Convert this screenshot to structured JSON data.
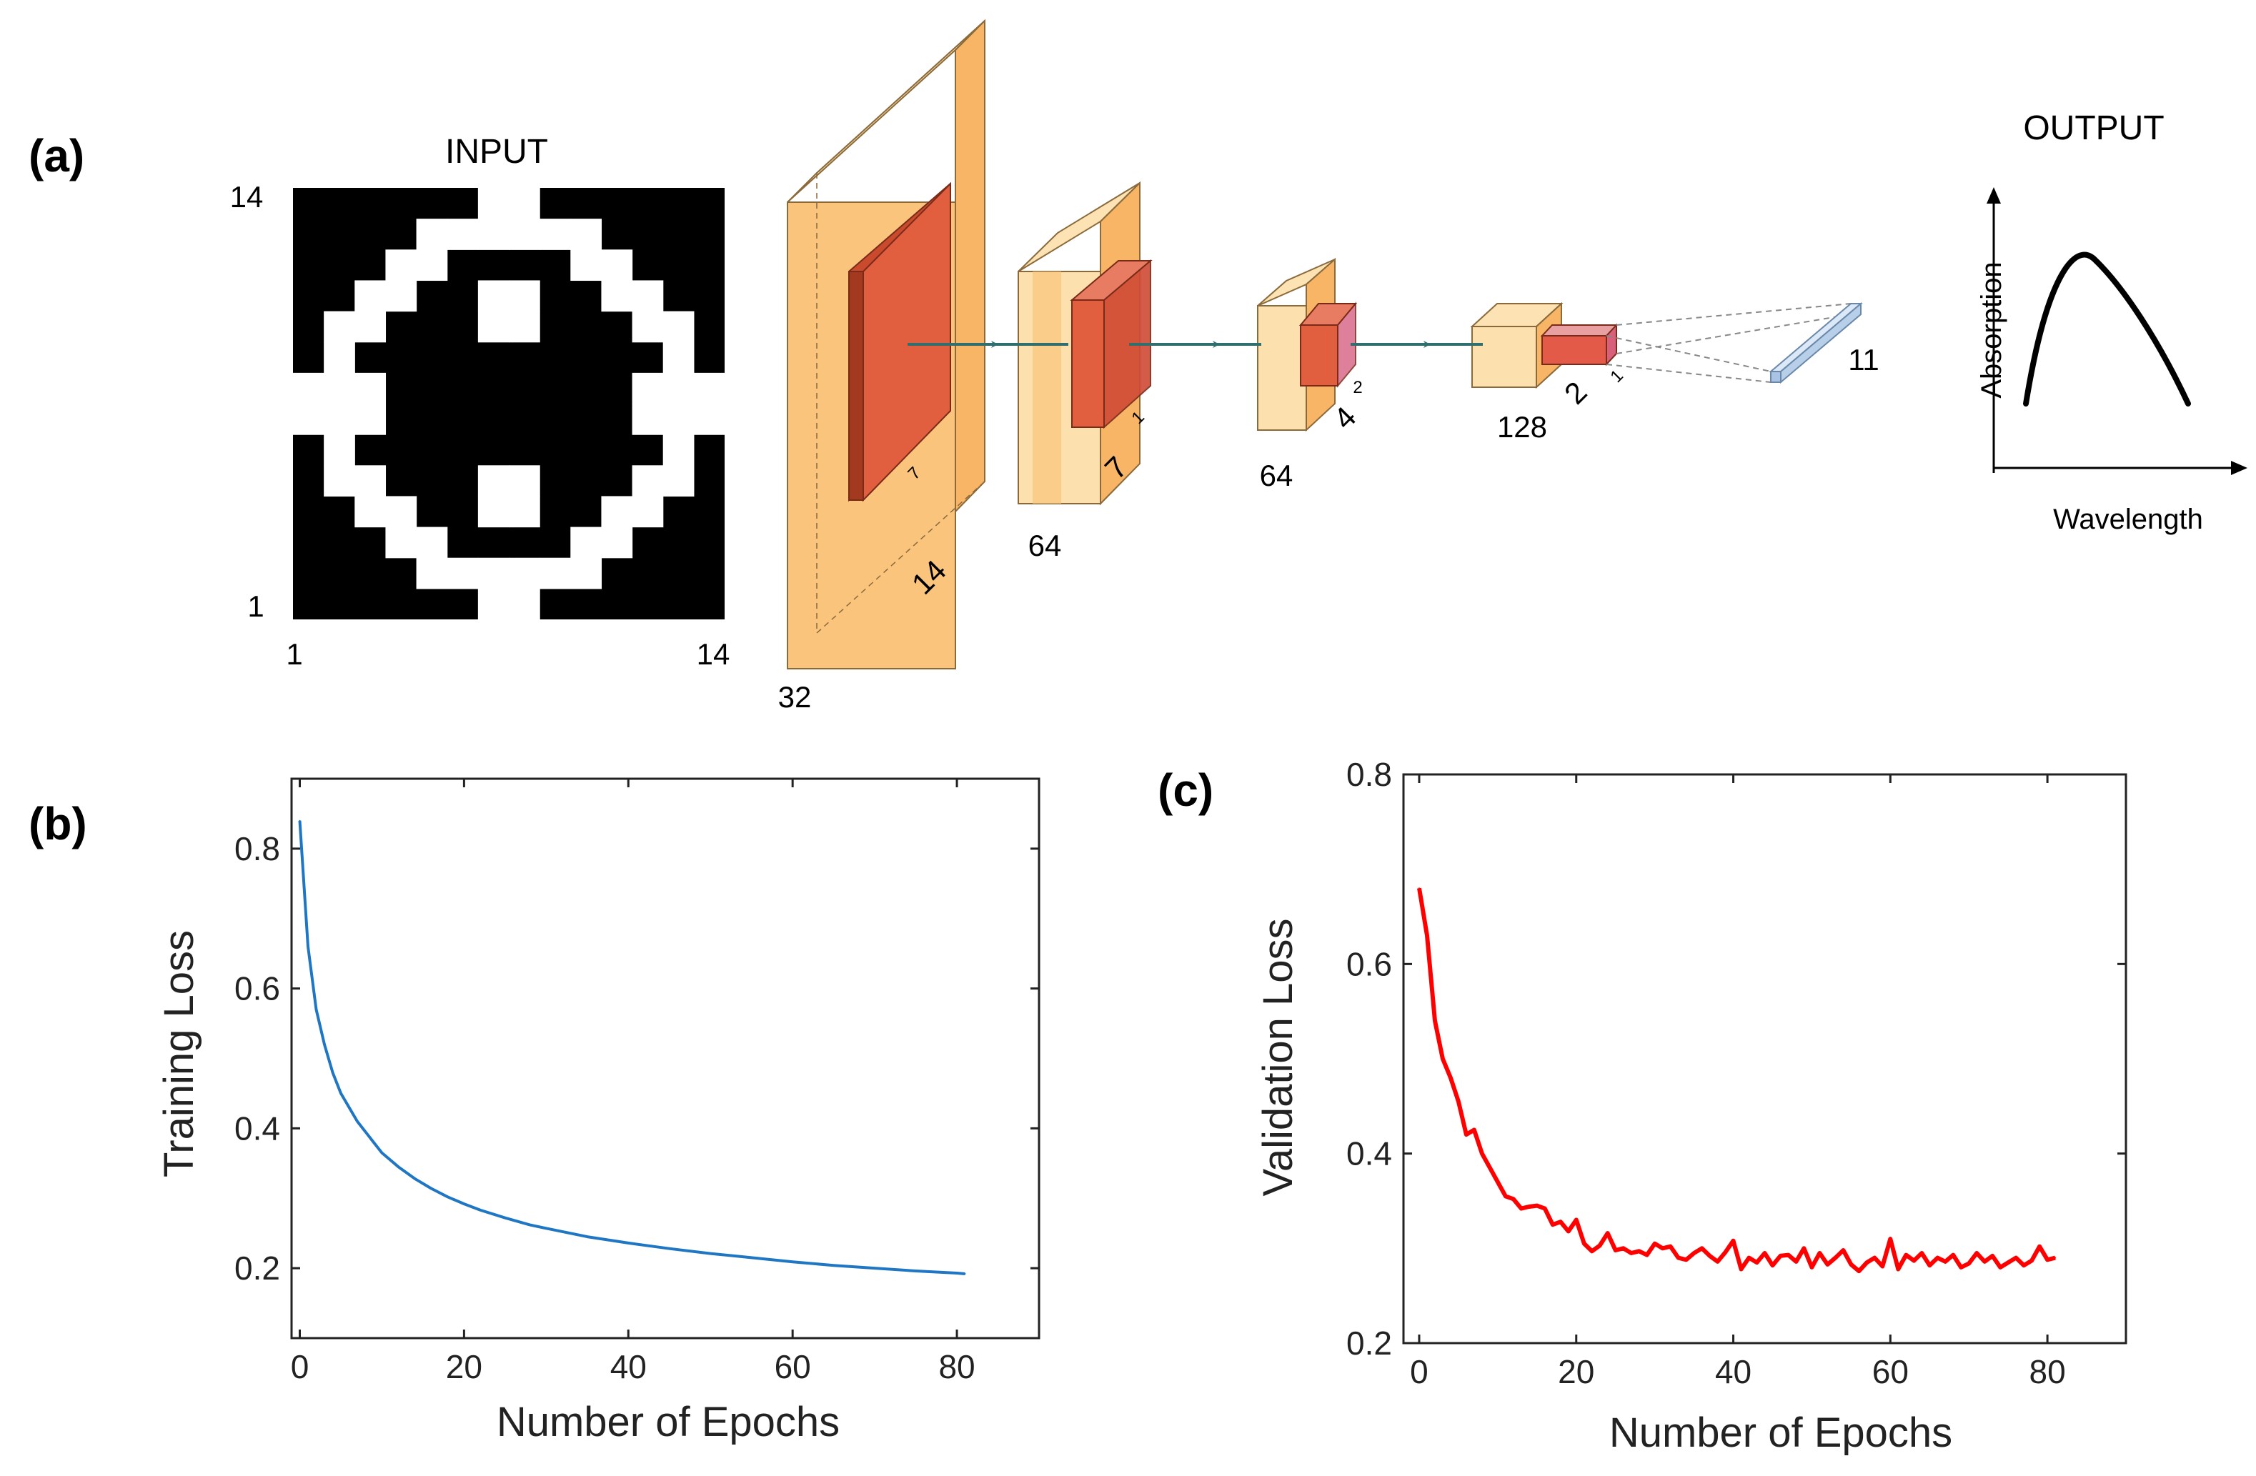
{
  "panels": {
    "a": "(a)",
    "b": "(b)",
    "c": "(c)"
  },
  "architecture": {
    "input": {
      "title": "INPUT",
      "y_top": "14",
      "y_bottom": "1",
      "x_left": "1",
      "x_right": "14",
      "pattern": [
        "00000011000000",
        "00001111110000",
        "00011000011000",
        "00110011001100",
        "01100011000110",
        "01000000000010",
        "11100000000111",
        "11100000000111",
        "01000000000010",
        "01100011000110",
        "00110011001100",
        "00011000011000",
        "00001111110000",
        "00000011000000"
      ]
    },
    "layers": {
      "l1": {
        "depth": "32",
        "side": "14",
        "kernel": "7"
      },
      "l2": {
        "depth": "64",
        "side": "7",
        "kernel": "1"
      },
      "l3": {
        "depth": "64",
        "side": "4",
        "kernel": "2"
      },
      "l4": {
        "depth": "128",
        "side": "2",
        "kernel": "1"
      },
      "out_vector": "11"
    },
    "output": {
      "title": "OUTPUT",
      "ylabel": "Absorption",
      "xlabel": "Wavelength"
    }
  },
  "chart_data": [
    {
      "type": "line",
      "panel": "(b)",
      "xlabel": "Number of Epochs",
      "ylabel": "Training Loss",
      "xlim": [
        -1,
        90
      ],
      "ylim": [
        0.1,
        0.9
      ],
      "xticks": [
        "0",
        "20",
        "40",
        "60",
        "80"
      ],
      "yticks": [
        "0.2",
        "0.4",
        "0.6",
        "0.8"
      ],
      "color": "#1f77c4",
      "x": [
        0,
        1,
        2,
        3,
        4,
        5,
        6,
        7,
        8,
        9,
        10,
        12,
        14,
        16,
        18,
        20,
        22,
        25,
        28,
        30,
        35,
        40,
        45,
        50,
        55,
        60,
        65,
        70,
        75,
        80,
        81
      ],
      "y": [
        0.84,
        0.66,
        0.57,
        0.52,
        0.48,
        0.45,
        0.43,
        0.41,
        0.395,
        0.38,
        0.365,
        0.345,
        0.328,
        0.314,
        0.302,
        0.292,
        0.283,
        0.272,
        0.262,
        0.257,
        0.245,
        0.236,
        0.228,
        0.221,
        0.215,
        0.209,
        0.204,
        0.2,
        0.196,
        0.193,
        0.192
      ]
    },
    {
      "type": "line",
      "panel": "(c)",
      "xlabel": "Number of Epochs",
      "ylabel": "Validation Loss",
      "xlim": [
        -2,
        90
      ],
      "ylim": [
        0.2,
        0.8
      ],
      "xticks": [
        "0",
        "20",
        "40",
        "60",
        "80"
      ],
      "yticks": [
        "0.2",
        "0.4",
        "0.6",
        "0.8"
      ],
      "color": "#ff0000",
      "x": [
        0,
        1,
        2,
        3,
        4,
        5,
        6,
        7,
        8,
        9,
        10,
        11,
        12,
        13,
        14,
        15,
        16,
        17,
        18,
        19,
        20,
        21,
        22,
        23,
        24,
        25,
        26,
        27,
        28,
        29,
        30,
        31,
        32,
        33,
        34,
        35,
        36,
        37,
        38,
        39,
        40,
        41,
        42,
        43,
        44,
        45,
        46,
        47,
        48,
        49,
        50,
        51,
        52,
        53,
        54,
        55,
        56,
        57,
        58,
        59,
        60,
        61,
        62,
        63,
        64,
        65,
        66,
        67,
        68,
        69,
        70,
        71,
        72,
        73,
        74,
        75,
        76,
        77,
        78,
        79,
        80,
        81
      ],
      "y": [
        0.68,
        0.63,
        0.54,
        0.5,
        0.48,
        0.455,
        0.42,
        0.425,
        0.4,
        0.385,
        0.37,
        0.355,
        0.352,
        0.342,
        0.344,
        0.345,
        0.342,
        0.325,
        0.328,
        0.318,
        0.33,
        0.305,
        0.297,
        0.303,
        0.316,
        0.298,
        0.3,
        0.295,
        0.297,
        0.293,
        0.305,
        0.3,
        0.302,
        0.29,
        0.288,
        0.295,
        0.3,
        0.292,
        0.286,
        0.296,
        0.308,
        0.278,
        0.29,
        0.285,
        0.295,
        0.282,
        0.292,
        0.293,
        0.286,
        0.3,
        0.28,
        0.295,
        0.283,
        0.29,
        0.298,
        0.283,
        0.276,
        0.285,
        0.29,
        0.281,
        0.31,
        0.278,
        0.293,
        0.287,
        0.295,
        0.282,
        0.29,
        0.286,
        0.293,
        0.28,
        0.284,
        0.295,
        0.286,
        0.292,
        0.28,
        0.285,
        0.29,
        0.282,
        0.287,
        0.302,
        0.288,
        0.29
      ]
    }
  ]
}
